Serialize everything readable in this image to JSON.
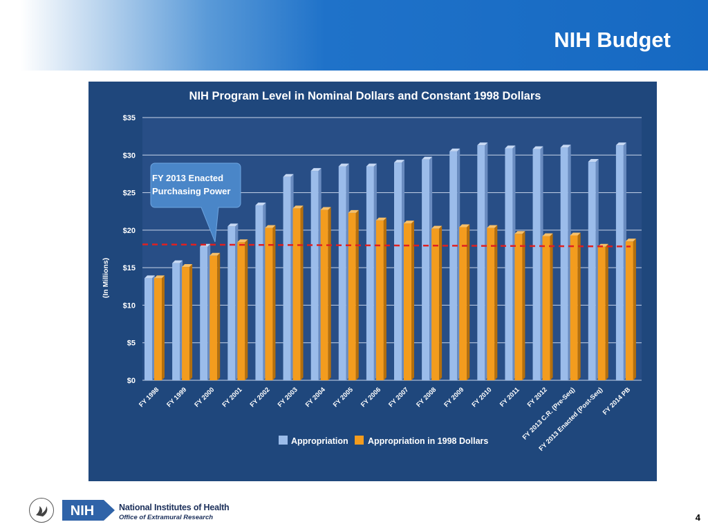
{
  "slide": {
    "title": "NIH Budget",
    "page_number": "4"
  },
  "footer": {
    "org_abbrev": "NIH",
    "org_name": "National Institutes of Health",
    "office": "Office of Extramural Research"
  },
  "colors": {
    "header_blue": "#1669c2",
    "chart_background": "#1f477c",
    "plot_area": "#284e86",
    "appropriation": "#9bbcea",
    "appropriation_1998": "#f39c1e",
    "reference_line": "#e02020",
    "callout": "#4a86c8"
  },
  "chart_data": {
    "type": "bar",
    "title": "NIH Program Level in Nominal Dollars and Constant 1998 Dollars",
    "ylabel": "(In Millions)",
    "ylim": [
      0,
      35
    ],
    "yticks": [
      0,
      5,
      10,
      15,
      20,
      25,
      30,
      35
    ],
    "ytick_labels": [
      "$0",
      "$5",
      "$10",
      "$15",
      "$20",
      "$25",
      "$30",
      "$35"
    ],
    "grid": true,
    "legend_position": "bottom",
    "categories": [
      "FY 1998",
      "FY 1999",
      "FY 2000",
      "FY 2001",
      "FY 2002",
      "FY 2003",
      "FY 2004",
      "FY 2005",
      "FY 2006",
      "FY 2007",
      "FY 2008",
      "FY 2009",
      "FY 2010",
      "FY 2011",
      "FY 2012",
      "FY 2013 C.R. (Pre-Seq)",
      "FY 2013 Enacted (Post-Seq)",
      "FY 2014 PB"
    ],
    "series": [
      {
        "name": "Appropriation",
        "values": [
          13.6,
          15.6,
          17.8,
          20.5,
          23.3,
          27.1,
          27.9,
          28.5,
          28.5,
          29.0,
          29.4,
          30.5,
          31.3,
          30.9,
          30.8,
          31.0,
          29.1,
          31.3
        ]
      },
      {
        "name": "Appropriation in 1998 Dollars",
        "values": [
          13.6,
          15.1,
          16.6,
          18.4,
          20.3,
          22.9,
          22.7,
          22.3,
          21.3,
          20.9,
          20.2,
          20.4,
          20.3,
          19.5,
          19.2,
          19.3,
          17.8,
          18.5
        ]
      }
    ],
    "reference_line": {
      "value": 18.1,
      "style": "dashed"
    },
    "annotation": {
      "lines": [
        "FY  2013 Enacted",
        "Purchasing Power"
      ],
      "points_to": "FY 2000"
    }
  }
}
